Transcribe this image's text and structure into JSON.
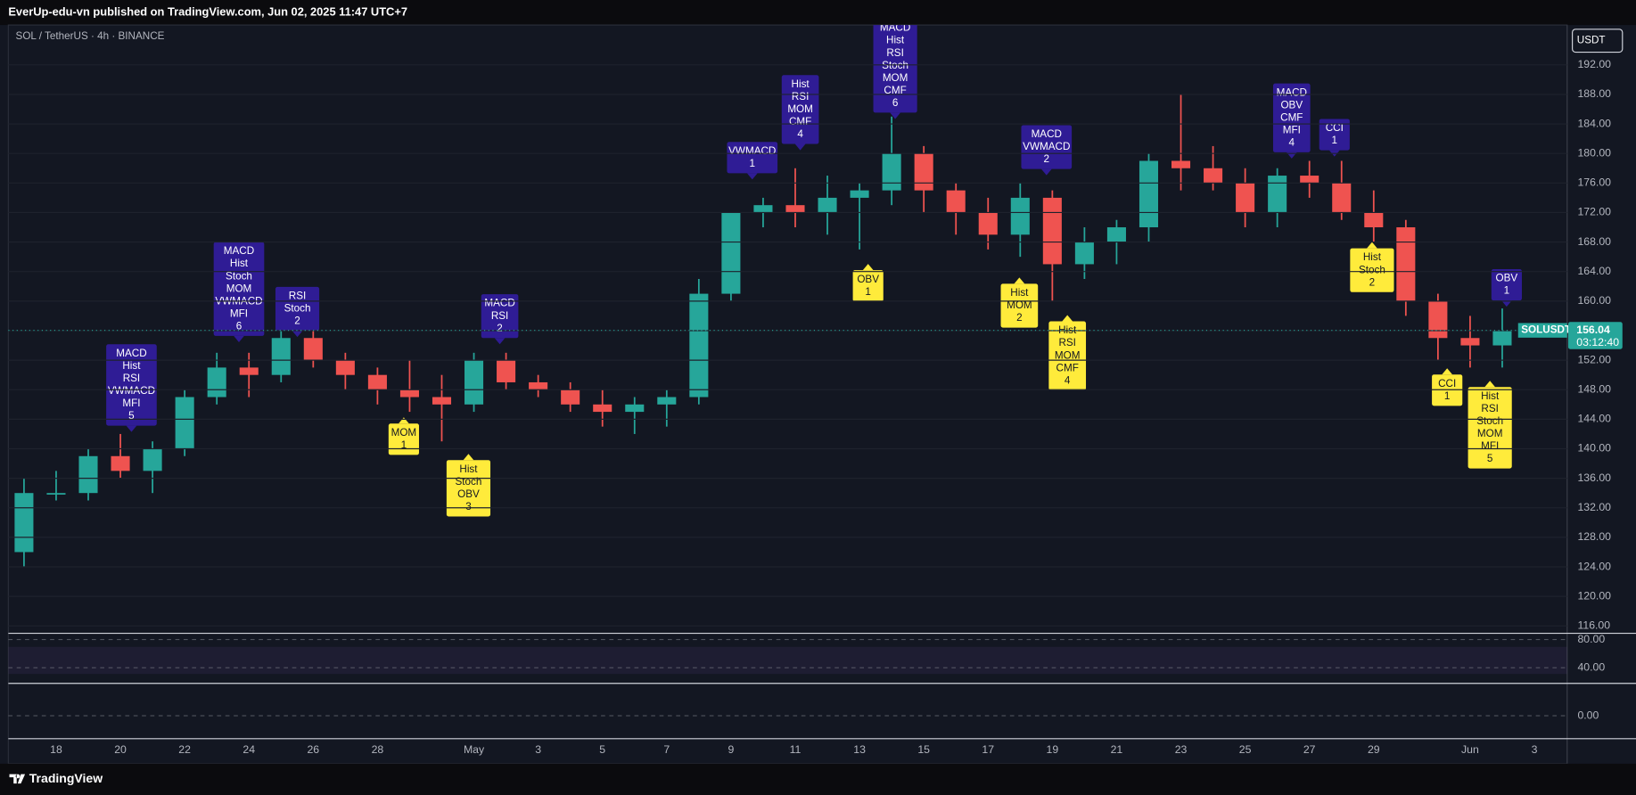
{
  "header": "EverUp-edu-vn published on TradingView.com, Jun 02, 2025 11:47 UTC+7",
  "symbol_info": "SOL / TetherUS · 4h · BINANCE",
  "currency": "USDT",
  "footer_logo": "TradingView",
  "chart_data": {
    "type": "candlestick",
    "categories": [
      null,
      "18",
      null,
      "20",
      null,
      "22",
      null,
      "24",
      null,
      "26",
      null,
      "28",
      null,
      null,
      "May",
      null,
      "3",
      null,
      "5",
      null,
      "7",
      null,
      "9",
      null,
      "11",
      null,
      "13",
      null,
      "15",
      null,
      "17",
      null,
      "19",
      null,
      "21",
      null,
      "23",
      null,
      "25",
      null,
      "27",
      null,
      "29",
      null,
      null,
      "Jun",
      null,
      "3"
    ],
    "open": [
      126,
      134,
      134,
      139,
      137,
      140,
      147,
      151,
      150,
      155,
      152,
      150,
      148,
      147,
      146,
      152,
      149,
      148,
      146,
      145,
      146,
      147,
      161,
      172,
      173,
      172,
      174,
      175,
      180,
      175,
      172,
      169,
      174,
      165,
      168,
      170,
      179,
      178,
      176,
      172,
      177,
      176,
      172,
      170,
      160,
      155,
      154,
      null
    ],
    "high": [
      136,
      137,
      140,
      142,
      141,
      148,
      153,
      153,
      156,
      156,
      153,
      151,
      152,
      150,
      153,
      153,
      150,
      149,
      148,
      147,
      148,
      163,
      172,
      174,
      178,
      177,
      176,
      185,
      181,
      176,
      174,
      176,
      175,
      170,
      171,
      180,
      188,
      181,
      178,
      178,
      179,
      179,
      175,
      171,
      161,
      158,
      159,
      null
    ],
    "low": [
      124,
      133,
      133,
      136,
      134,
      139,
      146,
      147,
      149,
      151,
      148,
      146,
      145,
      141,
      145,
      148,
      147,
      145,
      143,
      142,
      143,
      146,
      160,
      170,
      170,
      169,
      167,
      173,
      172,
      169,
      167,
      166,
      160,
      163,
      165,
      168,
      175,
      175,
      170,
      170,
      174,
      171,
      168,
      158,
      152,
      151,
      151,
      null
    ],
    "close": [
      134,
      134,
      139,
      137,
      140,
      147,
      151,
      150,
      155,
      152,
      150,
      148,
      147,
      146,
      152,
      149,
      148,
      146,
      145,
      146,
      147,
      161,
      172,
      173,
      172,
      174,
      175,
      180,
      175,
      172,
      169,
      174,
      165,
      168,
      170,
      179,
      178,
      176,
      172,
      177,
      176,
      172,
      170,
      160,
      155,
      154,
      156,
      null
    ],
    "up_color": "#26a69a",
    "down_color": "#ef5350",
    "ylim": [
      115,
      197.4
    ],
    "yticks": [
      {
        "value": 116,
        "label": "116.00"
      },
      {
        "value": 120,
        "label": "120.00"
      },
      {
        "value": 124,
        "label": "124.00"
      },
      {
        "value": 128,
        "label": "128.00"
      },
      {
        "value": 132,
        "label": "132.00"
      },
      {
        "value": 136,
        "label": "136.00"
      },
      {
        "value": 140,
        "label": "140.00"
      },
      {
        "value": 144,
        "label": "144.00"
      },
      {
        "value": 148,
        "label": "148.00"
      },
      {
        "value": 152,
        "label": "152.00"
      },
      {
        "value": 156,
        "label": "156.00"
      },
      {
        "value": 160,
        "label": "160.00"
      },
      {
        "value": 164,
        "label": "164.00"
      },
      {
        "value": 168,
        "label": "168.00"
      },
      {
        "value": 172,
        "label": "172.00"
      },
      {
        "value": 176,
        "label": "176.00"
      },
      {
        "value": 180,
        "label": "180.00"
      },
      {
        "value": 184,
        "label": "184.00"
      },
      {
        "value": 188,
        "label": "188.00"
      },
      {
        "value": 192,
        "label": "192.00"
      }
    ],
    "last_price": {
      "value": 156.04,
      "label": "156.04"
    },
    "last_symbol": "SOLUSDT",
    "countdown": "03:12:40",
    "bearish_labels": [
      {
        "lines": [
          "MACD",
          "Hist",
          "RSI",
          "VWMACD",
          "MFI",
          "5"
        ]
      },
      {
        "lines": [
          "MACD",
          "Hist",
          "Stoch",
          "MOM",
          "VWMACD",
          "MFI",
          "6"
        ]
      },
      {
        "lines": [
          "RSI",
          "Stoch",
          "2"
        ]
      },
      {
        "lines": [
          "MACD",
          "RSI",
          "2"
        ]
      },
      {
        "lines": [
          "VWMACD",
          "1"
        ]
      },
      {
        "lines": [
          "Hist",
          "RSI",
          "MOM",
          "CMF",
          "4"
        ]
      },
      {
        "lines": [
          "MACD",
          "Hist",
          "RSI",
          "Stoch",
          "MOM",
          "CMF",
          "6"
        ]
      },
      {
        "lines": [
          "MACD",
          "VWMACD",
          "2"
        ]
      },
      {
        "lines": [
          "MACD",
          "OBV",
          "CMF",
          "MFI",
          "4"
        ]
      },
      {
        "lines": [
          "CCI",
          "1"
        ]
      },
      {
        "lines": [
          "OBV",
          "1"
        ]
      }
    ],
    "bullish_labels": [
      {
        "lines": [
          "MOM",
          "1"
        ]
      },
      {
        "lines": [
          "Hist",
          "Stoch",
          "OBV",
          "3"
        ]
      },
      {
        "lines": [
          "OBV",
          "1"
        ]
      },
      {
        "lines": [
          "Hist",
          "MOM",
          "2"
        ]
      },
      {
        "lines": [
          "Hist",
          "RSI",
          "MOM",
          "CMF",
          "4"
        ]
      },
      {
        "lines": [
          "Hist",
          "Stoch",
          "2"
        ]
      },
      {
        "lines": [
          "CCI",
          "1"
        ]
      },
      {
        "lines": [
          "Hist",
          "RSI",
          "Stoch",
          "MOM",
          "MFI",
          "5"
        ]
      }
    ]
  },
  "rsi_pane": {
    "ylim": [
      17.8,
      88.9
    ],
    "yticks": [
      {
        "value": 80,
        "label": "80.00"
      },
      {
        "value": 40,
        "label": "40.00"
      }
    ]
  },
  "macd_pane": {
    "ylim": [
      -4.15,
      5.85
    ],
    "yticks": [
      {
        "value": 0,
        "label": "0.00"
      }
    ]
  }
}
